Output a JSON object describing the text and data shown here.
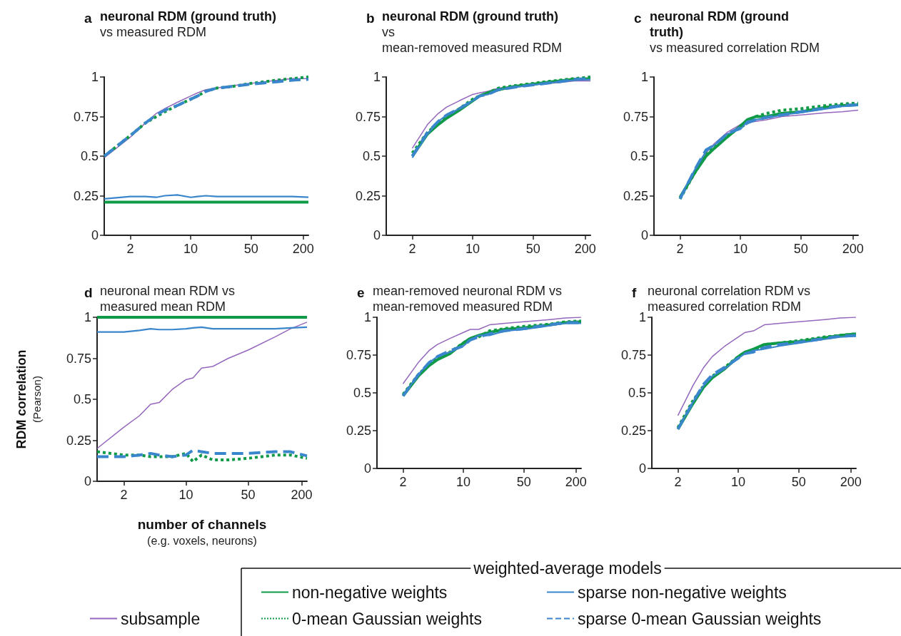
{
  "chart_data": [
    {
      "type": "line",
      "annotations": [
        "a"
      ],
      "title": "neuronal RDM (ground truth)",
      "subtitle": "vs measured RDM",
      "x": [
        1,
        2,
        3,
        4,
        5,
        7,
        10,
        12,
        15,
        20,
        30,
        50,
        100,
        150,
        230
      ],
      "log": "x",
      "xlim": [
        1,
        230
      ],
      "xticks": [
        2,
        10,
        50,
        200
      ],
      "ylim": [
        0,
        1
      ],
      "yticks": [
        0,
        0.25,
        0.5,
        0.75,
        1
      ],
      "grid": false,
      "marker": "none",
      "series": [
        {
          "color": "#9467bd",
          "line_style": "solid",
          "values": [
            0.49,
            0.62,
            0.71,
            0.77,
            0.8,
            0.84,
            0.88,
            0.9,
            0.92,
            0.93,
            0.945,
            0.96,
            0.98,
            0.99,
            0.99
          ]
        },
        {
          "color": "#0f9a48",
          "line_style": "solid",
          "values": [
            0.21,
            0.21,
            0.21,
            0.21,
            0.21,
            0.21,
            0.21,
            0.21,
            0.21,
            0.21,
            0.21,
            0.21,
            0.21,
            0.21,
            0.21
          ]
        },
        {
          "color": "#0f9a48",
          "line_style": "dotted",
          "values": [
            0.5,
            0.63,
            0.71,
            0.75,
            0.78,
            0.82,
            0.86,
            0.88,
            0.91,
            0.93,
            0.94,
            0.96,
            0.98,
            0.99,
            1.0
          ]
        },
        {
          "color": "#3a86cd",
          "line_style": "solid",
          "values": [
            0.23,
            0.245,
            0.245,
            0.24,
            0.25,
            0.255,
            0.24,
            0.245,
            0.25,
            0.245,
            0.245,
            0.245,
            0.245,
            0.245,
            0.24
          ]
        },
        {
          "color": "#3a86cd",
          "line_style": "dashed",
          "values": [
            0.5,
            0.63,
            0.71,
            0.76,
            0.79,
            0.82,
            0.86,
            0.88,
            0.91,
            0.93,
            0.94,
            0.955,
            0.97,
            0.98,
            0.985
          ]
        }
      ]
    },
    {
      "type": "line",
      "annotations": [
        "b"
      ],
      "title": "neuronal RDM (ground truth)",
      "subtitle": "vs\nmean-removed measured RDM",
      "x": [
        2,
        3,
        4,
        5,
        7,
        10,
        12,
        15,
        20,
        30,
        50,
        100,
        150,
        230
      ],
      "log": "x",
      "xlim": [
        1,
        230
      ],
      "xticks": [
        2,
        10,
        50,
        200
      ],
      "ylim": [
        0,
        1
      ],
      "yticks": [
        0,
        0.25,
        0.5,
        0.75,
        1
      ],
      "grid": false,
      "marker": "none",
      "series": [
        {
          "color": "#9467bd",
          "line_style": "solid",
          "values": [
            0.55,
            0.7,
            0.77,
            0.81,
            0.85,
            0.89,
            0.9,
            0.91,
            0.93,
            0.94,
            0.95,
            0.965,
            0.975,
            0.975
          ]
        },
        {
          "color": "#0f9a48",
          "line_style": "solid",
          "values": [
            0.5,
            0.64,
            0.7,
            0.74,
            0.79,
            0.85,
            0.88,
            0.9,
            0.92,
            0.94,
            0.955,
            0.975,
            0.985,
            0.99
          ]
        },
        {
          "color": "#0f9a48",
          "line_style": "dotted",
          "values": [
            0.52,
            0.65,
            0.71,
            0.75,
            0.8,
            0.86,
            0.88,
            0.9,
            0.93,
            0.945,
            0.96,
            0.98,
            0.99,
            1.0
          ]
        },
        {
          "color": "#3a86cd",
          "line_style": "solid",
          "values": [
            0.49,
            0.64,
            0.72,
            0.76,
            0.8,
            0.85,
            0.88,
            0.89,
            0.92,
            0.935,
            0.95,
            0.97,
            0.98,
            0.985
          ]
        },
        {
          "color": "#3a86cd",
          "line_style": "dashed",
          "values": [
            0.5,
            0.65,
            0.72,
            0.76,
            0.8,
            0.85,
            0.88,
            0.89,
            0.92,
            0.935,
            0.95,
            0.97,
            0.985,
            0.99
          ]
        }
      ]
    },
    {
      "type": "line",
      "annotations": [
        "c"
      ],
      "title": "neuronal RDM (ground truth)",
      "subtitle": "vs measured correlation RDM",
      "x": [
        2,
        3,
        4,
        5,
        7,
        10,
        12,
        15,
        20,
        30,
        50,
        100,
        150,
        230
      ],
      "log": "x",
      "xlim": [
        1,
        230
      ],
      "xticks": [
        2,
        10,
        50,
        200
      ],
      "ylim": [
        0,
        1
      ],
      "yticks": [
        0,
        0.25,
        0.5,
        0.75,
        1
      ],
      "grid": false,
      "marker": "none",
      "series": [
        {
          "color": "#9467bd",
          "line_style": "solid",
          "values": [
            0.25,
            0.4,
            0.52,
            0.58,
            0.65,
            0.7,
            0.71,
            0.72,
            0.73,
            0.75,
            0.76,
            0.775,
            0.78,
            0.79
          ]
        },
        {
          "color": "#0f9a48",
          "line_style": "solid",
          "values": [
            0.24,
            0.4,
            0.5,
            0.55,
            0.62,
            0.69,
            0.73,
            0.75,
            0.75,
            0.77,
            0.78,
            0.81,
            0.82,
            0.825
          ]
        },
        {
          "color": "#0f9a48",
          "line_style": "dotted",
          "values": [
            0.23,
            0.4,
            0.51,
            0.56,
            0.63,
            0.68,
            0.71,
            0.75,
            0.77,
            0.79,
            0.8,
            0.82,
            0.83,
            0.835
          ]
        },
        {
          "color": "#3a86cd",
          "line_style": "solid",
          "values": [
            0.24,
            0.42,
            0.53,
            0.57,
            0.64,
            0.67,
            0.72,
            0.73,
            0.74,
            0.76,
            0.775,
            0.8,
            0.815,
            0.82
          ]
        },
        {
          "color": "#3a86cd",
          "line_style": "dashed",
          "values": [
            0.23,
            0.42,
            0.54,
            0.57,
            0.64,
            0.68,
            0.71,
            0.73,
            0.745,
            0.76,
            0.78,
            0.805,
            0.82,
            0.825
          ]
        }
      ]
    },
    {
      "type": "line",
      "annotations": [
        "d"
      ],
      "subtitle": "neuronal mean RDM vs\nmeasured mean RDM",
      "xlabel": "number of channels\n(e.g. voxels, neurons)",
      "ylabel": "RDM correlation\n(Pearson)",
      "legend": "bottom",
      "legend_title": "weighted-average models",
      "x": [
        1,
        2,
        3,
        4,
        5,
        7,
        10,
        12,
        15,
        20,
        30,
        50,
        100,
        150,
        230
      ],
      "log": "x",
      "xlim": [
        1,
        230
      ],
      "xticks": [
        2,
        10,
        50,
        200
      ],
      "ylim": [
        0,
        1
      ],
      "yticks": [
        0,
        0.25,
        0.5,
        0.75,
        1
      ],
      "grid": false,
      "marker": "none",
      "series": [
        {
          "name": "subsample",
          "color": "#9467bd",
          "line_style": "solid",
          "values": [
            0.2,
            0.33,
            0.4,
            0.47,
            0.48,
            0.56,
            0.62,
            0.63,
            0.69,
            0.7,
            0.75,
            0.8,
            0.88,
            0.93,
            0.97
          ]
        },
        {
          "name": "non-negative weights",
          "color": "#0f9a48",
          "line_style": "solid",
          "values": [
            1.0,
            1.0,
            1.0,
            1.0,
            1.0,
            1.0,
            1.0,
            1.0,
            1.0,
            1.0,
            1.0,
            1.0,
            1.0,
            1.0,
            1.0
          ]
        },
        {
          "name": "0-mean Gaussian weights",
          "color": "#0f9a48",
          "line_style": "dotted",
          "values": [
            0.18,
            0.16,
            0.16,
            0.15,
            0.15,
            0.15,
            0.17,
            0.12,
            0.16,
            0.13,
            0.13,
            0.14,
            0.16,
            0.16,
            0.14
          ]
        },
        {
          "name": "sparse non-negative weights",
          "color": "#3a86cd",
          "line_style": "solid",
          "values": [
            0.91,
            0.91,
            0.92,
            0.93,
            0.925,
            0.925,
            0.93,
            0.935,
            0.94,
            0.93,
            0.93,
            0.93,
            0.93,
            0.935,
            0.94
          ]
        },
        {
          "name": "sparse 0-mean Gaussian weights",
          "color": "#3a86cd",
          "line_style": "dashed",
          "values": [
            0.15,
            0.15,
            0.16,
            0.17,
            0.16,
            0.15,
            0.16,
            0.19,
            0.18,
            0.17,
            0.17,
            0.17,
            0.18,
            0.18,
            0.155
          ]
        }
      ]
    },
    {
      "type": "line",
      "annotations": [
        "e"
      ],
      "subtitle": "mean-removed neuronal RDM vs\nmean-removed measured RDM",
      "x": [
        2,
        3,
        4,
        5,
        7,
        10,
        12,
        15,
        20,
        30,
        50,
        100,
        150,
        230
      ],
      "log": "x",
      "xlim": [
        1,
        230
      ],
      "xticks": [
        2,
        10,
        50,
        200
      ],
      "ylim": [
        0,
        1
      ],
      "yticks": [
        0,
        0.25,
        0.5,
        0.75,
        1
      ],
      "grid": false,
      "marker": "none",
      "series": [
        {
          "color": "#9467bd",
          "line_style": "solid",
          "values": [
            0.56,
            0.7,
            0.78,
            0.82,
            0.86,
            0.9,
            0.92,
            0.92,
            0.95,
            0.96,
            0.97,
            0.985,
            0.995,
            1.0
          ]
        },
        {
          "color": "#0f9a48",
          "line_style": "solid",
          "values": [
            0.48,
            0.61,
            0.68,
            0.72,
            0.76,
            0.83,
            0.86,
            0.88,
            0.9,
            0.92,
            0.93,
            0.95,
            0.965,
            0.97
          ]
        },
        {
          "color": "#0f9a48",
          "line_style": "dotted",
          "values": [
            0.49,
            0.62,
            0.69,
            0.73,
            0.77,
            0.83,
            0.86,
            0.87,
            0.91,
            0.925,
            0.94,
            0.955,
            0.97,
            0.975
          ]
        },
        {
          "color": "#3a86cd",
          "line_style": "solid",
          "values": [
            0.48,
            0.62,
            0.7,
            0.74,
            0.77,
            0.81,
            0.85,
            0.88,
            0.88,
            0.91,
            0.92,
            0.945,
            0.96,
            0.96
          ]
        },
        {
          "color": "#3a86cd",
          "line_style": "dashed",
          "values": [
            0.48,
            0.62,
            0.7,
            0.74,
            0.78,
            0.81,
            0.85,
            0.87,
            0.89,
            0.91,
            0.925,
            0.95,
            0.965,
            0.965
          ]
        }
      ]
    },
    {
      "type": "line",
      "annotations": [
        "f"
      ],
      "subtitle": "neuronal correlation RDM vs\nmeasured correlation RDM",
      "x": [
        2,
        3,
        4,
        5,
        7,
        10,
        12,
        15,
        20,
        30,
        50,
        100,
        150,
        230
      ],
      "log": "x",
      "xlim": [
        1,
        230
      ],
      "xticks": [
        2,
        10,
        50,
        200
      ],
      "ylim": [
        0,
        1
      ],
      "yticks": [
        0,
        0.25,
        0.5,
        0.75,
        1
      ],
      "grid": false,
      "marker": "none",
      "series": [
        {
          "color": "#9467bd",
          "line_style": "solid",
          "values": [
            0.35,
            0.55,
            0.67,
            0.74,
            0.81,
            0.87,
            0.9,
            0.91,
            0.95,
            0.96,
            0.97,
            0.985,
            0.995,
            1.0
          ]
        },
        {
          "color": "#0f9a48",
          "line_style": "solid",
          "values": [
            0.26,
            0.43,
            0.54,
            0.6,
            0.66,
            0.74,
            0.77,
            0.79,
            0.82,
            0.83,
            0.84,
            0.865,
            0.88,
            0.89
          ]
        },
        {
          "color": "#0f9a48",
          "line_style": "dotted",
          "values": [
            0.27,
            0.45,
            0.55,
            0.61,
            0.67,
            0.74,
            0.77,
            0.78,
            0.82,
            0.83,
            0.845,
            0.87,
            0.88,
            0.89
          ]
        },
        {
          "color": "#3a86cd",
          "line_style": "solid",
          "values": [
            0.26,
            0.44,
            0.55,
            0.61,
            0.66,
            0.73,
            0.76,
            0.78,
            0.79,
            0.81,
            0.83,
            0.855,
            0.87,
            0.875
          ]
        },
        {
          "color": "#3a86cd",
          "line_style": "dashed",
          "values": [
            0.26,
            0.44,
            0.56,
            0.62,
            0.67,
            0.73,
            0.76,
            0.77,
            0.8,
            0.82,
            0.835,
            0.86,
            0.875,
            0.88
          ]
        }
      ]
    }
  ]
}
